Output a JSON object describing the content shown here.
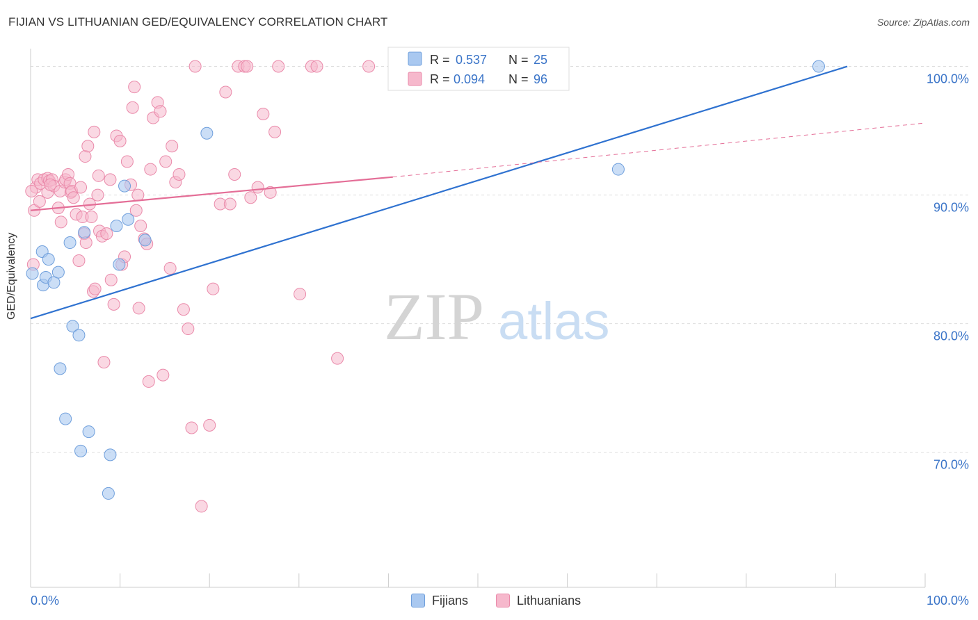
{
  "title": "FIJIAN VS LITHUANIAN GED/EQUIVALENCY CORRELATION CHART",
  "source": "Source: ZipAtlas.com",
  "watermark": {
    "zip": "ZIP",
    "atlas": "atlas"
  },
  "colors": {
    "fijians_fill": "#a9c8f0",
    "fijians_stroke": "#6f9fdc",
    "fijians_line": "#2f72d0",
    "lithuanians_fill": "#f6b8cc",
    "lithuanians_stroke": "#ea8aaa",
    "lithuanians_line": "#e46e97",
    "axis_text_blue": "#3a74c8",
    "grid": "#dddddd"
  },
  "legend_top": {
    "fijians": {
      "r_label": "R =",
      "r_value": "0.537",
      "n_label": "N =",
      "n_value": "25"
    },
    "lithuanians": {
      "r_label": "R =",
      "r_value": "0.094",
      "n_label": "N =",
      "n_value": "96"
    }
  },
  "legend_bottom": {
    "fijians": "Fijians",
    "lithuanians": "Lithuanians"
  },
  "chart_data": {
    "type": "scatter",
    "title": "FIJIAN VS LITHUANIAN GED/EQUIVALENCY CORRELATION CHART",
    "xlabel": "",
    "ylabel": "GED/Equivalency",
    "xlim": [
      0,
      100
    ],
    "ylim": [
      59.5,
      103
    ],
    "x_tick_labels": [
      "0.0%",
      "100.0%"
    ],
    "y_ticks": [
      70,
      80,
      90,
      100
    ],
    "y_tick_labels": [
      "70.0%",
      "80.0%",
      "90.0%",
      "100.0%"
    ],
    "grid": true,
    "legend_placement": "top-center and bottom",
    "series": [
      {
        "name": "Fijians",
        "r": 0.537,
        "n": 25,
        "trend": {
          "x0": 0,
          "y0": 80.4,
          "x1": 91.3,
          "y1": 100
        },
        "points": [
          [
            0.2,
            83.9
          ],
          [
            1.3,
            85.6
          ],
          [
            1.4,
            83.0
          ],
          [
            1.7,
            83.6
          ],
          [
            2.0,
            85.0
          ],
          [
            2.6,
            83.2
          ],
          [
            3.1,
            84.0
          ],
          [
            3.3,
            76.5
          ],
          [
            3.9,
            72.6
          ],
          [
            4.4,
            86.3
          ],
          [
            4.7,
            79.8
          ],
          [
            5.4,
            79.1
          ],
          [
            5.6,
            70.1
          ],
          [
            6.0,
            87.1
          ],
          [
            6.5,
            71.6
          ],
          [
            8.7,
            66.8
          ],
          [
            8.9,
            69.8
          ],
          [
            9.6,
            87.6
          ],
          [
            9.9,
            84.6
          ],
          [
            10.5,
            90.7
          ],
          [
            10.9,
            88.1
          ],
          [
            12.8,
            86.5
          ],
          [
            19.7,
            94.8
          ],
          [
            65.7,
            92.0
          ],
          [
            88.1,
            100.0
          ]
        ]
      },
      {
        "name": "Lithuanians",
        "r": 0.094,
        "n": 96,
        "trend": {
          "x0": 0,
          "y0": 88.8,
          "x1": 40.5,
          "y1": 91.4,
          "dash_x1": 100,
          "dash_y1": 95.6
        },
        "points": [
          [
            0.3,
            84.6
          ],
          [
            0.4,
            88.8
          ],
          [
            0.6,
            90.6
          ],
          [
            0.8,
            91.2
          ],
          [
            1.1,
            90.9
          ],
          [
            1.5,
            91.2
          ],
          [
            1.9,
            91.3
          ],
          [
            1.9,
            90.2
          ],
          [
            2.1,
            91.1
          ],
          [
            2.4,
            91.2
          ],
          [
            2.6,
            90.7
          ],
          [
            3.1,
            89.0
          ],
          [
            3.3,
            90.3
          ],
          [
            3.4,
            87.9
          ],
          [
            3.8,
            91.0
          ],
          [
            3.9,
            91.2
          ],
          [
            4.2,
            91.6
          ],
          [
            4.4,
            90.9
          ],
          [
            4.5,
            90.2
          ],
          [
            4.6,
            90.3
          ],
          [
            4.8,
            89.8
          ],
          [
            5.1,
            88.5
          ],
          [
            5.4,
            84.9
          ],
          [
            5.6,
            90.6
          ],
          [
            5.8,
            88.3
          ],
          [
            6.0,
            87.0
          ],
          [
            6.1,
            93.0
          ],
          [
            6.2,
            86.3
          ],
          [
            6.4,
            93.8
          ],
          [
            6.6,
            89.3
          ],
          [
            6.8,
            88.3
          ],
          [
            7.0,
            82.5
          ],
          [
            7.2,
            82.7
          ],
          [
            7.5,
            90.0
          ],
          [
            7.6,
            91.5
          ],
          [
            7.7,
            87.2
          ],
          [
            8.0,
            86.8
          ],
          [
            8.2,
            77.0
          ],
          [
            8.5,
            87.0
          ],
          [
            8.9,
            91.2
          ],
          [
            9.0,
            83.4
          ],
          [
            9.3,
            81.5
          ],
          [
            9.6,
            94.6
          ],
          [
            10.0,
            94.2
          ],
          [
            10.2,
            84.6
          ],
          [
            10.5,
            85.2
          ],
          [
            10.8,
            92.6
          ],
          [
            11.2,
            90.8
          ],
          [
            11.4,
            96.8
          ],
          [
            11.6,
            98.4
          ],
          [
            11.8,
            88.8
          ],
          [
            12.1,
            81.2
          ],
          [
            12.3,
            87.6
          ],
          [
            12.7,
            86.6
          ],
          [
            13.0,
            86.2
          ],
          [
            13.2,
            75.5
          ],
          [
            13.4,
            92.0
          ],
          [
            13.7,
            96.0
          ],
          [
            14.2,
            97.2
          ],
          [
            14.5,
            96.5
          ],
          [
            14.8,
            76.0
          ],
          [
            15.1,
            92.6
          ],
          [
            15.6,
            84.3
          ],
          [
            15.8,
            93.8
          ],
          [
            16.2,
            91.0
          ],
          [
            16.6,
            91.6
          ],
          [
            17.1,
            81.1
          ],
          [
            17.6,
            79.6
          ],
          [
            18.0,
            71.9
          ],
          [
            18.4,
            100.0
          ],
          [
            19.1,
            65.8
          ],
          [
            20.0,
            72.1
          ],
          [
            20.4,
            82.7
          ],
          [
            21.2,
            89.3
          ],
          [
            21.8,
            98.0
          ],
          [
            22.3,
            89.3
          ],
          [
            22.8,
            91.6
          ],
          [
            23.2,
            100.0
          ],
          [
            23.9,
            100.0
          ],
          [
            24.2,
            100.0
          ],
          [
            24.6,
            89.8
          ],
          [
            25.4,
            90.6
          ],
          [
            26.0,
            96.3
          ],
          [
            26.8,
            90.2
          ],
          [
            27.3,
            94.9
          ],
          [
            27.7,
            100.0
          ],
          [
            30.1,
            82.3
          ],
          [
            31.4,
            100.0
          ],
          [
            32.0,
            100.0
          ],
          [
            34.3,
            77.3
          ],
          [
            37.8,
            100.0
          ],
          [
            0.1,
            90.3
          ],
          [
            1.0,
            89.5
          ],
          [
            2.2,
            90.8
          ],
          [
            12.0,
            90.0
          ],
          [
            7.1,
            94.9
          ]
        ]
      }
    ]
  }
}
